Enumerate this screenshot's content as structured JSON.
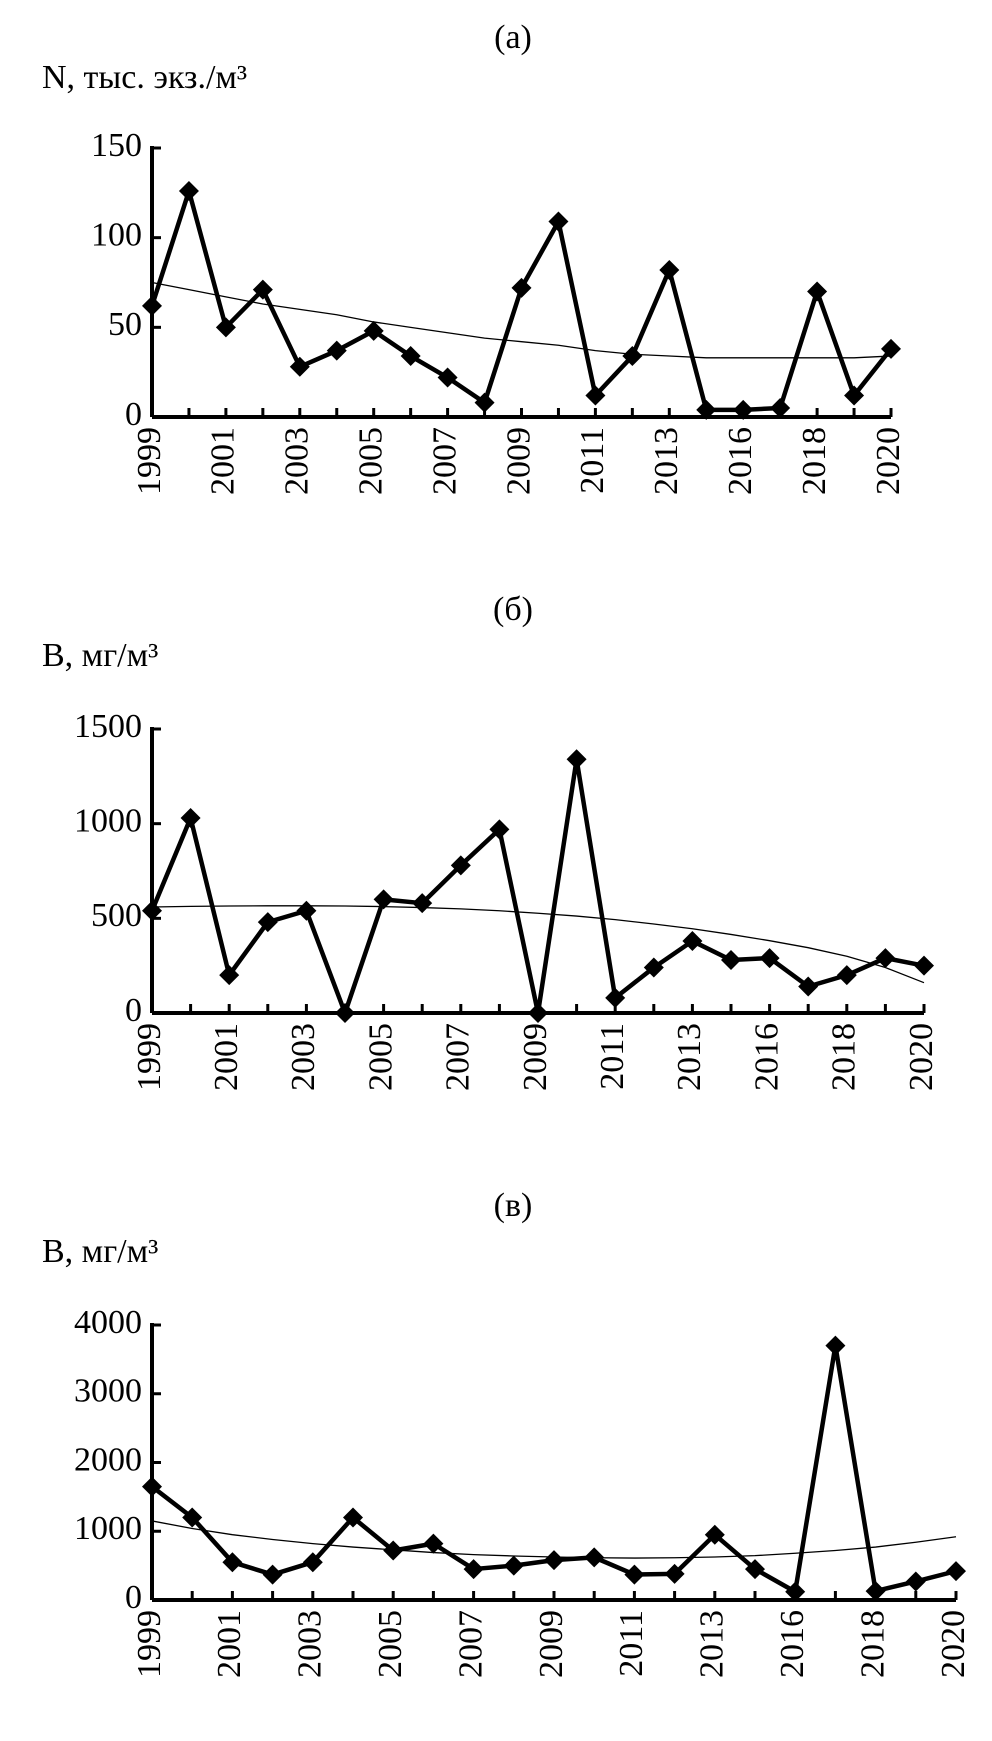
{
  "chart_data": [
    {
      "type": "line",
      "title": "(а)",
      "ylabel": "N, тыс. экз./м³",
      "categories": [
        "1999",
        null,
        "2001",
        null,
        "2003",
        null,
        "2005",
        null,
        "2007",
        null,
        "2009",
        null,
        "2011",
        null,
        "2013",
        null,
        "2016",
        null,
        "2018",
        null,
        "2020"
      ],
      "series": [
        {
          "color": "#000000",
          "marker": "diamond",
          "values": [
            62,
            126,
            50,
            71,
            28,
            37,
            48,
            34,
            22,
            8,
            72,
            109,
            12,
            34,
            82,
            4,
            4,
            5,
            70,
            12,
            38
          ]
        },
        {
          "color": "#000000",
          "marker": "none",
          "values": [
            75,
            71,
            67,
            63,
            60,
            57,
            53,
            50,
            47,
            44,
            42,
            40,
            37,
            35,
            34,
            33,
            33,
            33,
            33,
            33,
            34
          ]
        }
      ],
      "ylim": [
        0,
        150
      ],
      "yticks": [
        0,
        50,
        100,
        150
      ]
    },
    {
      "type": "line",
      "title": "(б)",
      "ylabel": "B, мг/м³",
      "categories": [
        "1999",
        null,
        "2001",
        null,
        "2003",
        null,
        "2005",
        null,
        "2007",
        null,
        "2009",
        null,
        "2011",
        null,
        "2013",
        null,
        "2016",
        null,
        "2018",
        null,
        "2020"
      ],
      "series": [
        {
          "color": "#000000",
          "marker": "diamond",
          "values": [
            540,
            1030,
            200,
            480,
            540,
            0,
            600,
            580,
            780,
            970,
            0,
            1340,
            80,
            240,
            380,
            280,
            290,
            140,
            200,
            290,
            250
          ]
        },
        {
          "color": "#000000",
          "marker": "none",
          "values": [
            560,
            563,
            565,
            566,
            566,
            565,
            562,
            557,
            550,
            540,
            527,
            512,
            493,
            470,
            445,
            415,
            382,
            345,
            300,
            240,
            160
          ]
        }
      ],
      "ylim": [
        0,
        1500
      ],
      "yticks": [
        0,
        500,
        1000,
        1500
      ]
    },
    {
      "type": "line",
      "title": "(в)",
      "ylabel": "B, мг/м³",
      "categories": [
        "1999",
        null,
        "2001",
        null,
        "2003",
        null,
        "2005",
        null,
        "2007",
        null,
        "2009",
        null,
        "2011",
        null,
        "2013",
        null,
        "2016",
        null,
        "2018",
        null,
        "2020"
      ],
      "series": [
        {
          "color": "#000000",
          "marker": "diamond",
          "values": [
            1650,
            1200,
            550,
            370,
            550,
            1200,
            720,
            820,
            450,
            500,
            580,
            620,
            370,
            380,
            950,
            450,
            120,
            3700,
            130,
            270,
            420
          ]
        },
        {
          "color": "#000000",
          "marker": "none",
          "values": [
            1150,
            1040,
            950,
            880,
            820,
            770,
            730,
            690,
            660,
            640,
            625,
            615,
            610,
            615,
            625,
            645,
            680,
            720,
            770,
            840,
            920
          ]
        }
      ],
      "ylim": [
        0,
        4000
      ],
      "yticks": [
        0,
        1000,
        2000,
        3000,
        4000
      ]
    }
  ]
}
